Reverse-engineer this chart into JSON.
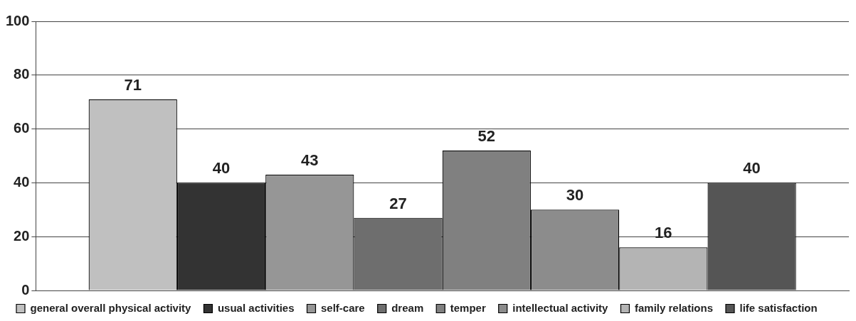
{
  "chart_data": {
    "type": "bar",
    "categories": [
      null
    ],
    "series": [
      {
        "name": "general overall physical activity",
        "color": "#c0c0c0",
        "values": [
          71
        ]
      },
      {
        "name": "usual activities",
        "color": "#333333",
        "values": [
          40
        ]
      },
      {
        "name": "self-care",
        "color": "#969696",
        "values": [
          43
        ]
      },
      {
        "name": "dream",
        "color": "#6e6e6e",
        "values": [
          27
        ]
      },
      {
        "name": "temper",
        "color": "#808080",
        "values": [
          52
        ]
      },
      {
        "name": "intellectual activity",
        "color": "#8c8c8c",
        "values": [
          30
        ]
      },
      {
        "name": "family relations",
        "color": "#b4b4b4",
        "values": [
          16
        ]
      },
      {
        "name": "life satisfaction",
        "color": "#555555",
        "values": [
          40
        ]
      }
    ],
    "ylim": [
      0,
      100
    ],
    "yticks": [
      0,
      20,
      40,
      60,
      80,
      100
    ],
    "grid": "y",
    "legend": "bottom",
    "data_labels": true,
    "tick_labels": "y"
  }
}
